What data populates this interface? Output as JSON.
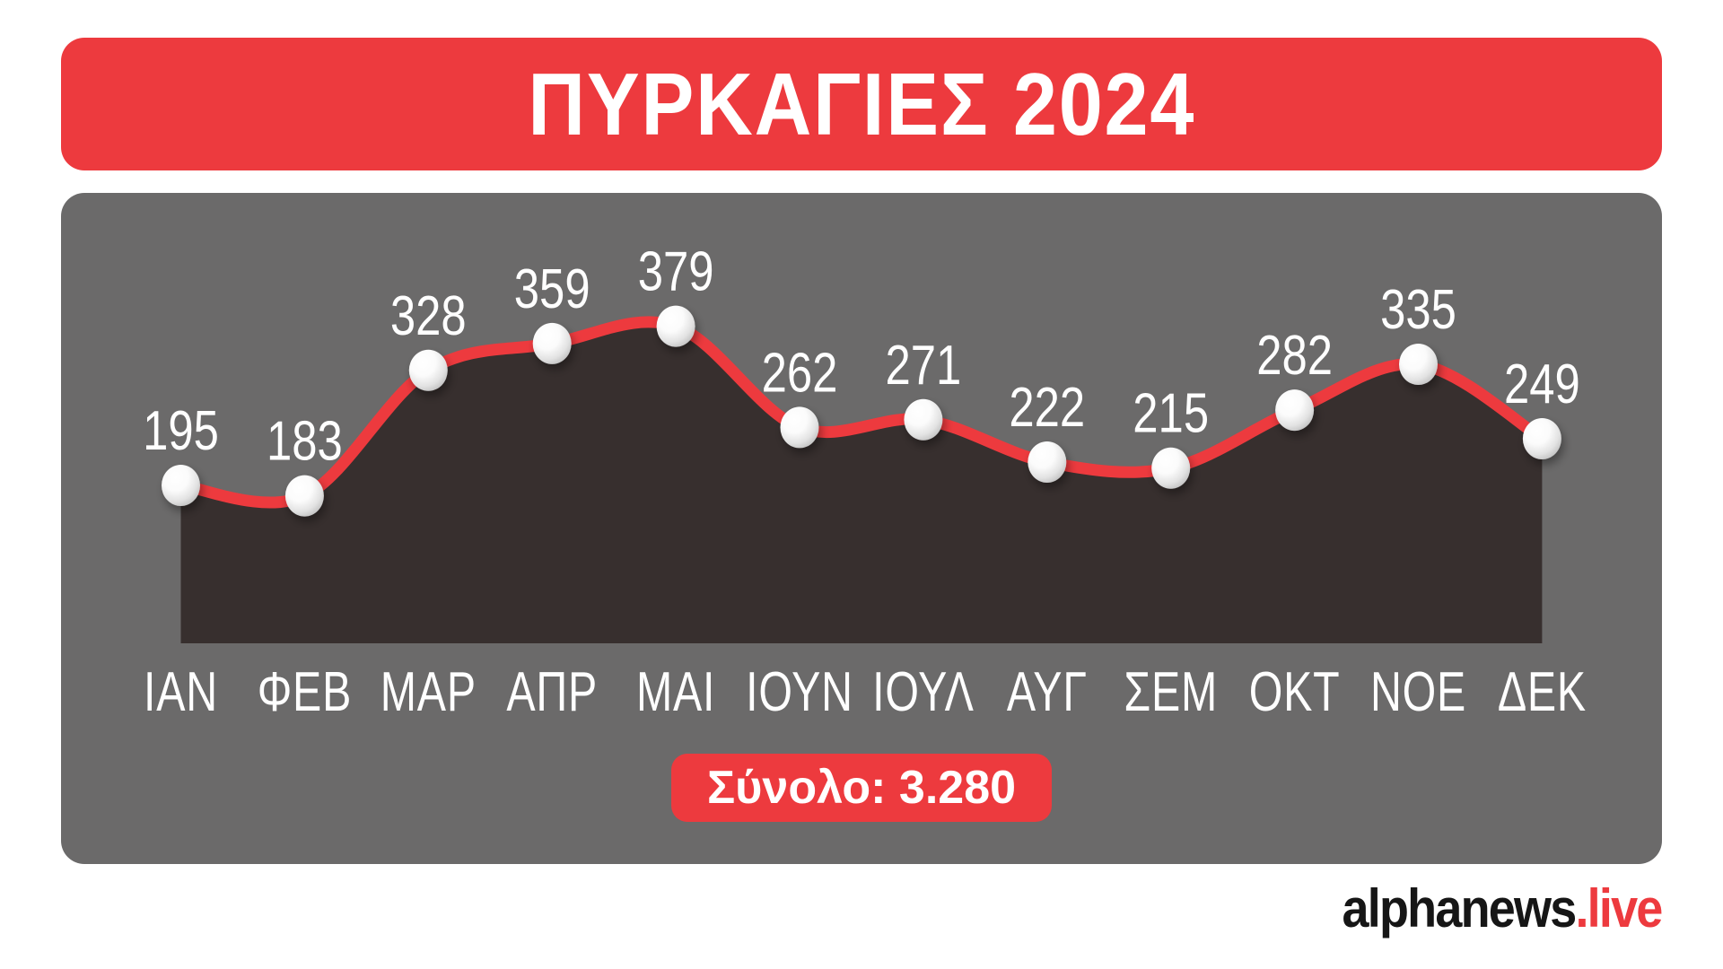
{
  "header": {
    "title": "ΠΥΡΚΑΓΙΕΣ 2024"
  },
  "chart_data": {
    "type": "area",
    "title": "ΠΥΡΚΑΓΙΕΣ 2024",
    "categories": [
      "ΙΑΝ",
      "ΦΕΒ",
      "ΜΑΡ",
      "ΑΠΡ",
      "ΜΑΙ",
      "ΙΟΥΝ",
      "ΙΟΥΛ",
      "ΑΥΓ",
      "ΣΕΜ",
      "ΟΚΤ",
      "ΝΟΕ",
      "ΔΕΚ"
    ],
    "values": [
      195,
      183,
      328,
      359,
      379,
      262,
      271,
      222,
      215,
      282,
      335,
      249
    ],
    "total_label": "Σύνολο: 3.280",
    "grid": false,
    "y_axis_visible": false,
    "x_axis_visible": true,
    "data_labels": true,
    "legend": "none",
    "line_color": "#ed3a3e",
    "area_color": "#372f2e",
    "marker_color": "#ffffff",
    "label_color": "#ffffff",
    "background_color": "#6b6a6a"
  },
  "total_badge": {
    "text": "Σύνολο: 3.280"
  },
  "footer": {
    "brand_name": "alphanews",
    "brand_tld": ".live"
  },
  "colors": {
    "accent_red": "#ed3a3e",
    "panel_gray": "#6b6a6a",
    "area_dark": "#372f2e",
    "logo_black": "#161616",
    "page_bg": "#ffffff",
    "text_white": "#ffffff"
  }
}
